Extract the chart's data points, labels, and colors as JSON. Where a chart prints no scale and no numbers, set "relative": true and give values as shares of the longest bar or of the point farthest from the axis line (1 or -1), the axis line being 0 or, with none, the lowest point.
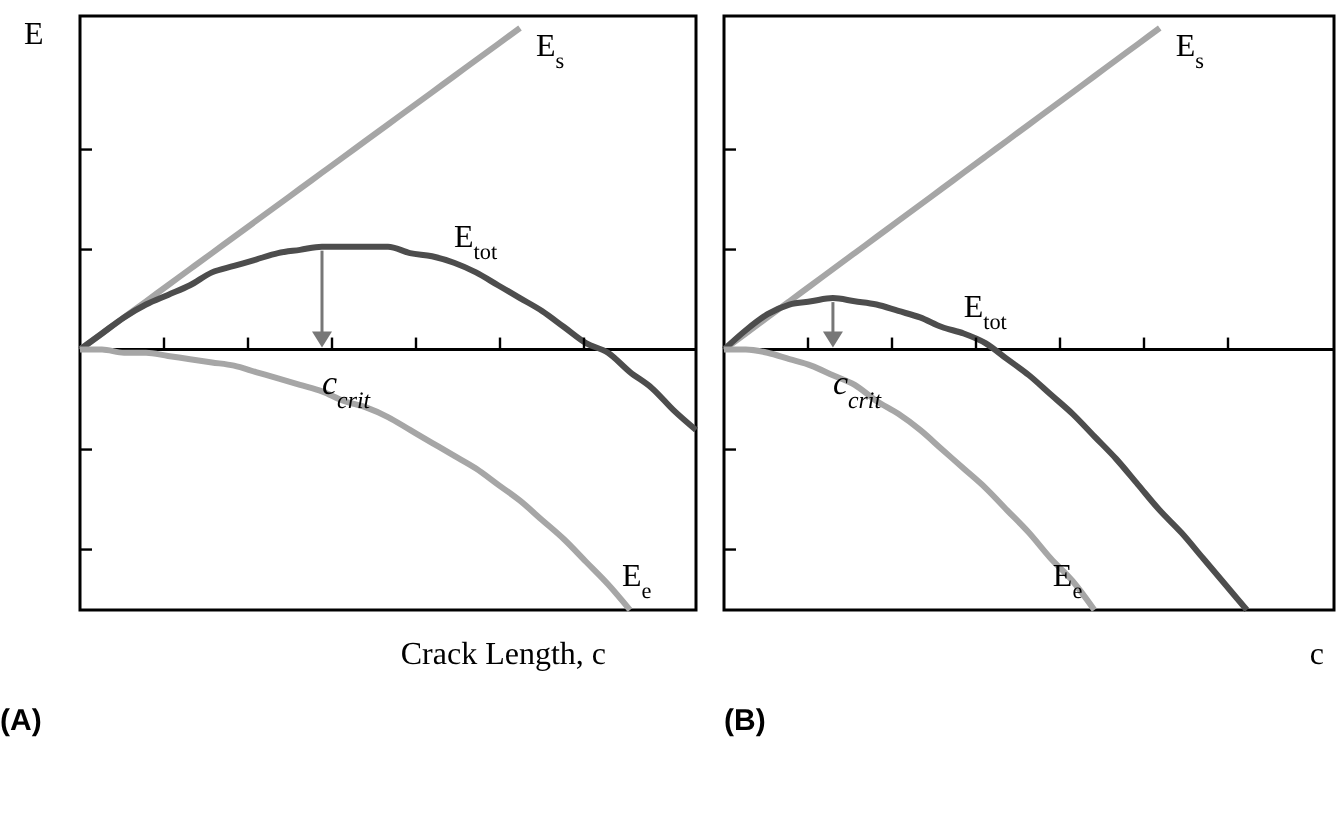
{
  "chart_data": [
    {
      "type": "line",
      "title": "(A)",
      "ylabel": "E",
      "xlabel": "Crack Length, c",
      "relative": true,
      "legend": false,
      "annotations": [
        "c$_{crit}$"
      ],
      "categories": [
        null,
        null,
        null,
        null,
        null,
        null,
        null,
        null,
        null,
        null,
        null,
        null,
        null,
        null,
        null,
        null,
        null,
        null,
        null,
        null,
        null,
        null,
        null,
        null,
        null,
        null,
        null,
        null,
        null
      ],
      "series": [
        {
          "name": "E$_{s}$",
          "color": "#a6a6a6",
          "values": [
            0,
            0.05,
            0.1,
            0.15,
            0.2,
            0.25,
            0.3,
            0.35,
            0.4,
            0.45,
            0.5,
            0.55,
            0.6,
            0.65,
            0.7,
            0.75,
            0.8,
            0.85,
            0.9,
            0.95,
            1,
            null,
            null,
            null,
            null,
            null,
            null,
            null,
            null
          ]
        },
        {
          "name": "E$_{tot}$",
          "color": "#4d4d4d",
          "values": [
            0,
            0.05,
            0.1,
            0.14,
            0.17,
            0.2,
            0.24,
            0.26,
            0.28,
            0.3,
            0.31,
            0.32,
            0.32,
            0.32,
            0.32,
            0.3,
            0.29,
            0.27,
            0.24,
            0.2,
            0.16,
            0.12,
            0.07,
            0.02,
            -0.01,
            -0.07,
            -0.12,
            -0.19,
            -0.25
          ]
        },
        {
          "name": "E$_{e}$",
          "color": "#a6a6a6",
          "values": [
            0,
            0,
            -0.01,
            -0.01,
            -0.02,
            -0.03,
            -0.04,
            -0.05,
            -0.07,
            -0.09,
            -0.11,
            -0.13,
            -0.16,
            -0.18,
            -0.21,
            -0.25,
            -0.29,
            -0.33,
            -0.37,
            -0.42,
            -0.47,
            -0.53,
            -0.59,
            -0.66,
            -0.73,
            -0.81,
            null,
            null,
            null
          ]
        }
      ]
    },
    {
      "type": "line",
      "title": "(B)",
      "xlabel": "c",
      "relative": true,
      "legend": false,
      "annotations": [
        "c$_{crit}$"
      ],
      "categories": [
        null,
        null,
        null,
        null,
        null,
        null,
        null,
        null,
        null,
        null,
        null,
        null,
        null,
        null,
        null,
        null,
        null,
        null,
        null,
        null,
        null,
        null,
        null,
        null,
        null,
        null,
        null,
        null,
        null
      ],
      "series": [
        {
          "name": "E$_{s}$",
          "color": "#a6a6a6",
          "values": [
            0,
            0.05,
            0.1,
            0.15,
            0.2,
            0.25,
            0.3,
            0.35,
            0.4,
            0.45,
            0.5,
            0.55,
            0.6,
            0.65,
            0.7,
            0.75,
            0.8,
            0.85,
            0.9,
            0.95,
            1,
            null,
            null,
            null,
            null,
            null,
            null,
            null,
            null
          ]
        },
        {
          "name": "E$_{tot}$",
          "color": "#4d4d4d",
          "values": [
            0,
            0.06,
            0.11,
            0.14,
            0.15,
            0.16,
            0.15,
            0.14,
            0.12,
            0.1,
            0.07,
            0.05,
            0.02,
            -0.03,
            -0.08,
            -0.14,
            -0.2,
            -0.27,
            -0.34,
            -0.42,
            -0.5,
            -0.57,
            -0.65,
            -0.73,
            -0.81,
            null,
            null,
            null,
            null
          ]
        },
        {
          "name": "E$_{e}$",
          "color": "#a6a6a6",
          "values": [
            0,
            0,
            -0.01,
            -0.03,
            -0.05,
            -0.08,
            -0.11,
            -0.16,
            -0.2,
            -0.25,
            -0.31,
            -0.37,
            -0.43,
            -0.5,
            -0.57,
            -0.65,
            -0.72,
            -0.81,
            null,
            null,
            null,
            null,
            null,
            null,
            null,
            null,
            null,
            null,
            null
          ]
        }
      ]
    }
  ]
}
